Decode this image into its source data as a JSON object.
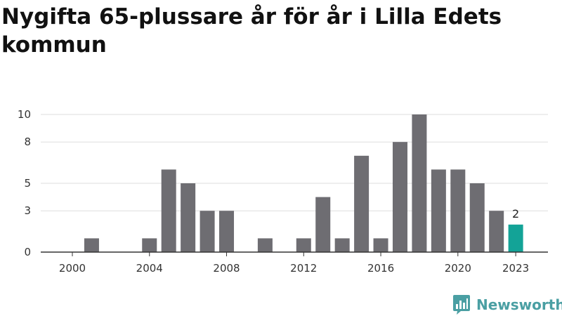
{
  "title": "Nygifta 65-plussare år för år i Lilla Edets kommun",
  "brand": {
    "name": "Newsworthy",
    "logo_icon": "bar-chart-bubble-icon",
    "color": "#4a9fa3"
  },
  "colors": {
    "bar": "#6e6d72",
    "highlight": "#13a397",
    "grid": "#dddddd",
    "axis": "#333333"
  },
  "chart_data": {
    "type": "bar",
    "title": "Nygifta 65-plussare år för år i Lilla Edets kommun",
    "xlabel": "",
    "ylabel": "",
    "categories": [
      2000,
      2001,
      2002,
      2003,
      2004,
      2005,
      2006,
      2007,
      2008,
      2009,
      2010,
      2011,
      2012,
      2013,
      2014,
      2015,
      2016,
      2017,
      2018,
      2019,
      2020,
      2021,
      2022,
      2023
    ],
    "values": [
      0,
      1,
      0,
      0,
      1,
      6,
      5,
      3,
      3,
      0,
      1,
      0,
      1,
      4,
      1,
      7,
      1,
      8,
      10,
      6,
      6,
      5,
      3,
      2
    ],
    "ylim": [
      0,
      10
    ],
    "y_ticks": [
      0,
      3,
      5,
      8,
      10
    ],
    "x_ticks": [
      2000,
      2004,
      2008,
      2012,
      2016,
      2020,
      2023
    ],
    "highlight_category": 2023,
    "highlight_label": "2",
    "grid": true,
    "legend": "none"
  }
}
